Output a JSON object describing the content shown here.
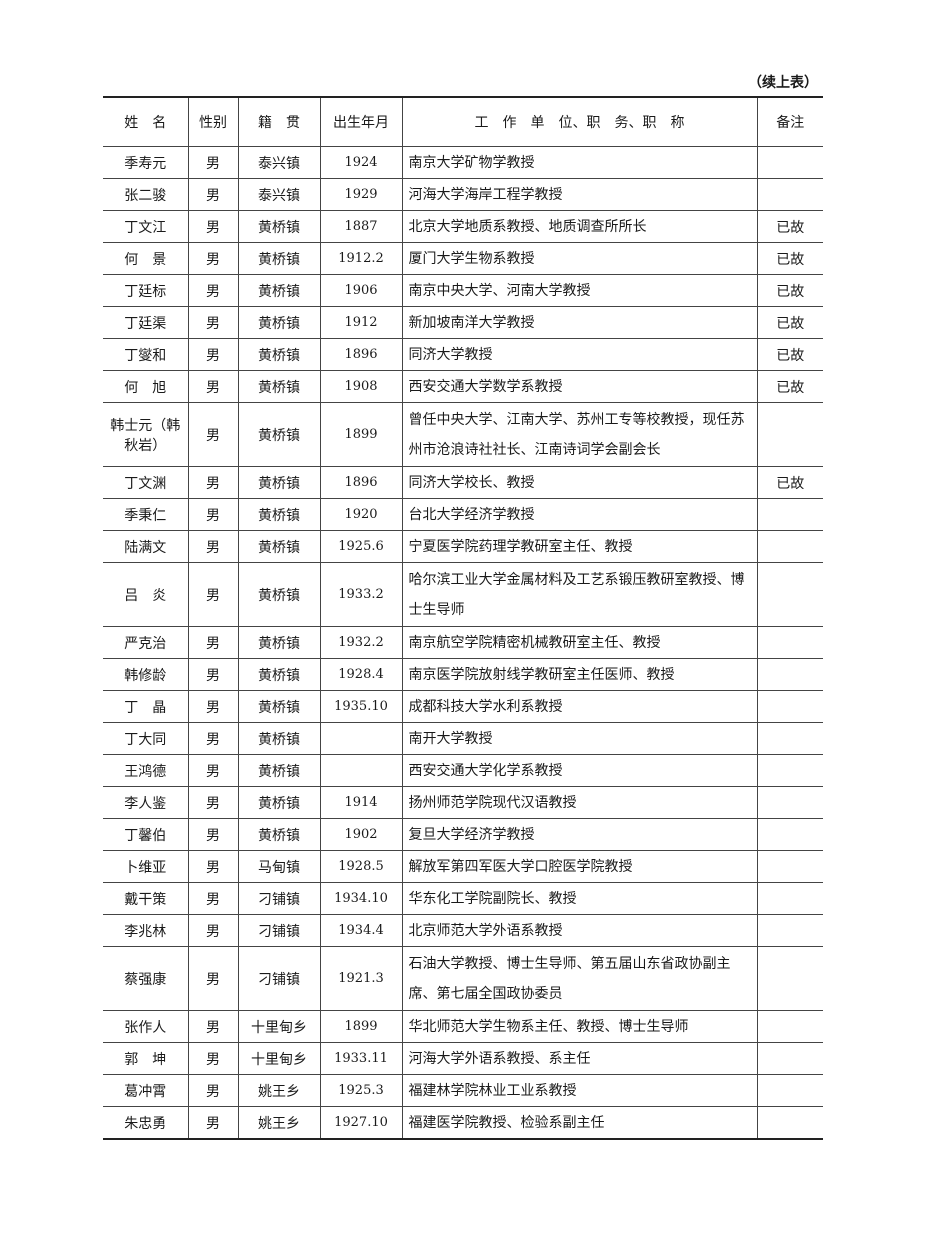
{
  "continued_label": "（续上表）",
  "headers": [
    "姓　名",
    "性别",
    "籍　贯",
    "出生年月",
    "工　作　单　位、职　务、职　称",
    "备注"
  ],
  "rows": [
    {
      "name": "季寿元",
      "gender": "男",
      "origin": "泰兴镇",
      "birth": "1924",
      "work": "南京大学矿物学教授",
      "note": ""
    },
    {
      "name": "张二骏",
      "gender": "男",
      "origin": "泰兴镇",
      "birth": "1929",
      "work": "河海大学海岸工程学教授",
      "note": ""
    },
    {
      "name": "丁文江",
      "gender": "男",
      "origin": "黄桥镇",
      "birth": "1887",
      "work": "北京大学地质系教授、地质调查所所长",
      "note": "已故"
    },
    {
      "name": "何　景",
      "gender": "男",
      "origin": "黄桥镇",
      "birth": "1912.2",
      "work": "厦门大学生物系教授",
      "note": "已故"
    },
    {
      "name": "丁廷标",
      "gender": "男",
      "origin": "黄桥镇",
      "birth": "1906",
      "work": "南京中央大学、河南大学教授",
      "note": "已故"
    },
    {
      "name": "丁廷渠",
      "gender": "男",
      "origin": "黄桥镇",
      "birth": "1912",
      "work": "新加坡南洋大学教授",
      "note": "已故"
    },
    {
      "name": "丁燮和",
      "gender": "男",
      "origin": "黄桥镇",
      "birth": "1896",
      "work": "同济大学教授",
      "note": "已故"
    },
    {
      "name": "何　旭",
      "gender": "男",
      "origin": "黄桥镇",
      "birth": "1908",
      "work": "西安交通大学数学系教授",
      "note": "已故"
    },
    {
      "name": "韩士元（韩秋岩）",
      "gender": "男",
      "origin": "黄桥镇",
      "birth": "1899",
      "work": "曾任中央大学、江南大学、苏州工专等校教授，现任苏州市沧浪诗社社长、江南诗词学会副会长",
      "note": "",
      "tall": true
    },
    {
      "name": "丁文渊",
      "gender": "男",
      "origin": "黄桥镇",
      "birth": "1896",
      "work": "同济大学校长、教授",
      "note": "已故"
    },
    {
      "name": "季秉仁",
      "gender": "男",
      "origin": "黄桥镇",
      "birth": "1920",
      "work": "台北大学经济学教授",
      "note": ""
    },
    {
      "name": "陆满文",
      "gender": "男",
      "origin": "黄桥镇",
      "birth": "1925.6",
      "work": "宁夏医学院药理学教研室主任、教授",
      "note": ""
    },
    {
      "name": "吕　炎",
      "gender": "男",
      "origin": "黄桥镇",
      "birth": "1933.2",
      "work": "哈尔滨工业大学金属材料及工艺系锻压教研室教授、博士生导师",
      "note": "",
      "tall": true
    },
    {
      "name": "严克治",
      "gender": "男",
      "origin": "黄桥镇",
      "birth": "1932.2",
      "work": "南京航空学院精密机械教研室主任、教授",
      "note": ""
    },
    {
      "name": "韩修龄",
      "gender": "男",
      "origin": "黄桥镇",
      "birth": "1928.4",
      "work": "南京医学院放射线学教研室主任医师、教授",
      "note": ""
    },
    {
      "name": "丁　晶",
      "gender": "男",
      "origin": "黄桥镇",
      "birth": "1935.10",
      "work": "成都科技大学水利系教授",
      "note": ""
    },
    {
      "name": "丁大同",
      "gender": "男",
      "origin": "黄桥镇",
      "birth": "",
      "work": "南开大学教授",
      "note": ""
    },
    {
      "name": "王鸿德",
      "gender": "男",
      "origin": "黄桥镇",
      "birth": "",
      "work": "西安交通大学化学系教授",
      "note": ""
    },
    {
      "name": "李人鉴",
      "gender": "男",
      "origin": "黄桥镇",
      "birth": "1914",
      "work": "扬州师范学院现代汉语教授",
      "note": ""
    },
    {
      "name": "丁馨伯",
      "gender": "男",
      "origin": "黄桥镇",
      "birth": "1902",
      "work": "复旦大学经济学教授",
      "note": ""
    },
    {
      "name": "卜维亚",
      "gender": "男",
      "origin": "马甸镇",
      "birth": "1928.5",
      "work": "解放军第四军医大学口腔医学院教授",
      "note": ""
    },
    {
      "name": "戴干策",
      "gender": "男",
      "origin": "刁铺镇",
      "birth": "1934.10",
      "work": "华东化工学院副院长、教授",
      "note": ""
    },
    {
      "name": "李兆林",
      "gender": "男",
      "origin": "刁铺镇",
      "birth": "1934.4",
      "work": "北京师范大学外语系教授",
      "note": ""
    },
    {
      "name": "蔡强康",
      "gender": "男",
      "origin": "刁铺镇",
      "birth": "1921.3",
      "work": "石油大学教授、博士生导师、第五届山东省政协副主席、第七届全国政协委员",
      "note": "",
      "tall": true
    },
    {
      "name": "张作人",
      "gender": "男",
      "origin": "十里甸乡",
      "birth": "1899",
      "work": "华北师范大学生物系主任、教授、博士生导师",
      "note": ""
    },
    {
      "name": "郭　坤",
      "gender": "男",
      "origin": "十里甸乡",
      "birth": "1933.11",
      "work": "河海大学外语系教授、系主任",
      "note": ""
    },
    {
      "name": "葛冲霄",
      "gender": "男",
      "origin": "姚王乡",
      "birth": "1925.3",
      "work": "福建林学院林业工业系教授",
      "note": ""
    },
    {
      "name": "朱忠勇",
      "gender": "男",
      "origin": "姚王乡",
      "birth": "1927.10",
      "work": "福建医学院教授、检验系副主任",
      "note": ""
    }
  ]
}
